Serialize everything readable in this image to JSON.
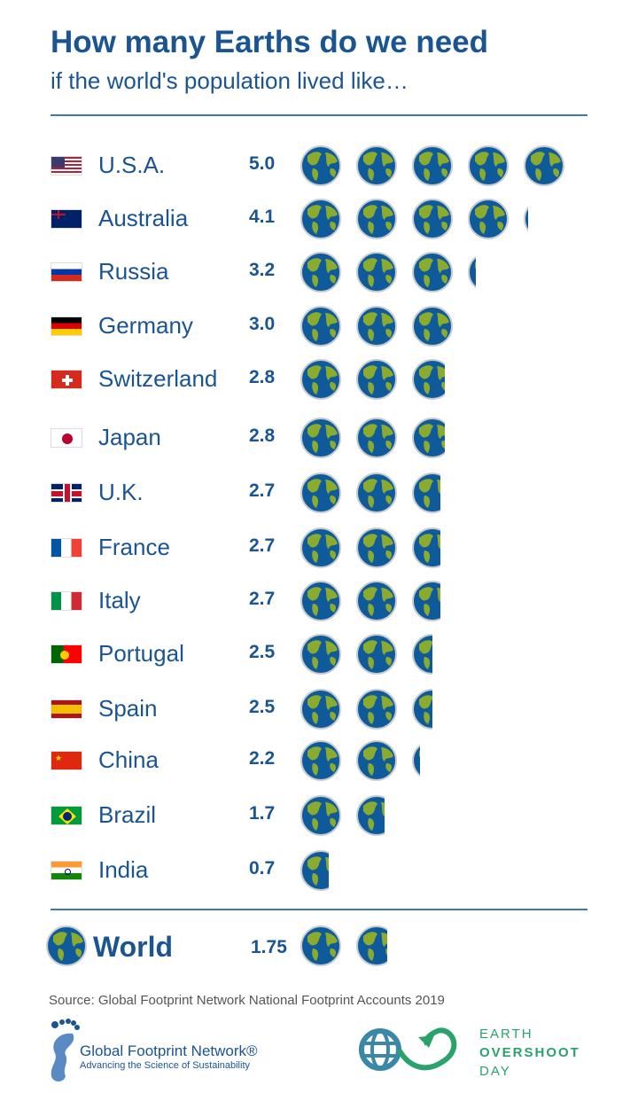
{
  "header": {
    "title": "How many Earths do we need",
    "subtitle": "if the world's population lived like…"
  },
  "countries": [
    {
      "name": "U.S.A.",
      "value": "5.0",
      "flag": "us"
    },
    {
      "name": "Australia",
      "value": "4.1",
      "flag": "au"
    },
    {
      "name": "Russia",
      "value": "3.2",
      "flag": "ru"
    },
    {
      "name": "Germany",
      "value": "3.0",
      "flag": "de"
    },
    {
      "name": "Switzerland",
      "value": "2.8",
      "flag": "ch"
    },
    {
      "name": "Japan",
      "value": "2.8",
      "flag": "jp"
    },
    {
      "name": "U.K.",
      "value": "2.7",
      "flag": "uk"
    },
    {
      "name": "France",
      "value": "2.7",
      "flag": "fr"
    },
    {
      "name": "Italy",
      "value": "2.7",
      "flag": "it"
    },
    {
      "name": "Portugal",
      "value": "2.5",
      "flag": "pt"
    },
    {
      "name": "Spain",
      "value": "2.5",
      "flag": "es"
    },
    {
      "name": "China",
      "value": "2.2",
      "flag": "cn"
    },
    {
      "name": "Brazil",
      "value": "1.7",
      "flag": "br"
    },
    {
      "name": "India",
      "value": "0.7",
      "flag": "in"
    }
  ],
  "world": {
    "name": "World",
    "value": "1.75"
  },
  "footer": {
    "source": "Source: Global Footprint Network National Footprint Accounts 2019",
    "gfn_name": "Global Footprint Network®",
    "gfn_tagline": "Advancing the Science of Sustainability",
    "eod_line1": "EARTH",
    "eod_line2": "OVERSHOOT",
    "eod_line3": "DAY"
  },
  "colors": {
    "brand_blue": "#1a5493",
    "ocean": "#0e5a9a",
    "land": "#8aab2e",
    "eod_green": "#2aa36b"
  }
}
